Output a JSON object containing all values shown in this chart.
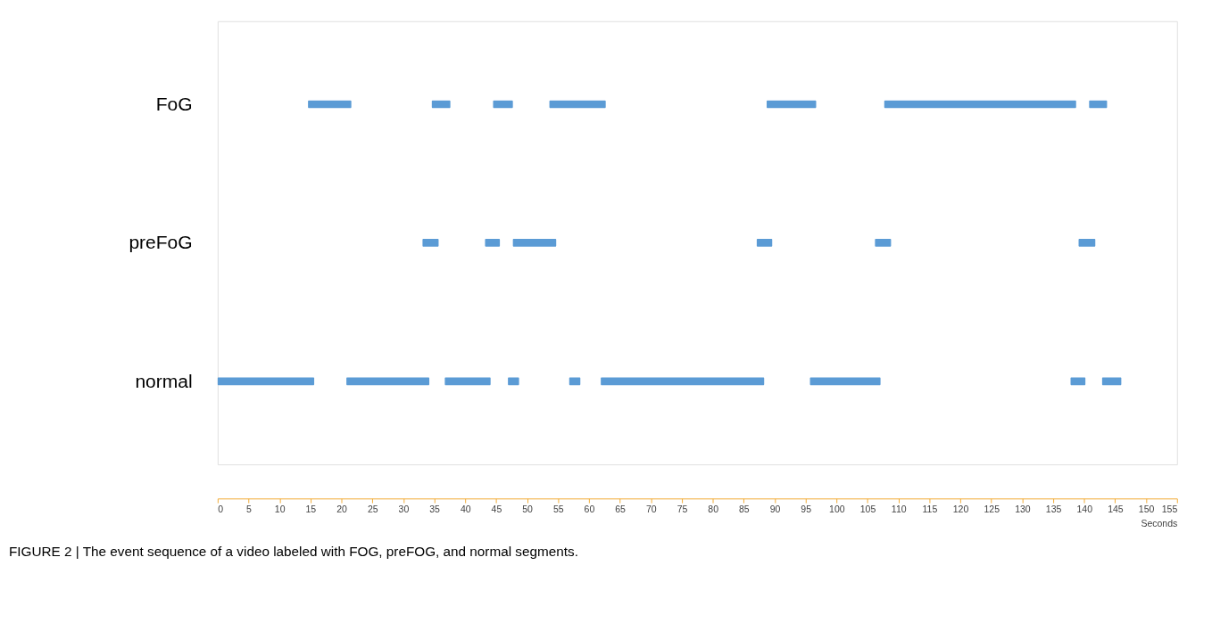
{
  "chart_data": {
    "type": "bar",
    "orientation": "horizontal",
    "categories": [
      "FoG",
      "preFoG",
      "normal"
    ],
    "series": [
      {
        "color": "#5b9bd5",
        "base": [
          14.6,
          33.1,
          0
        ],
        "values": [
          7.0,
          2.6,
          15.6
        ]
      },
      {
        "color": "#5b9bd5",
        "base": [
          34.6,
          43.2,
          20.8
        ],
        "values": [
          3.0,
          2.4,
          13.4
        ]
      },
      {
        "color": "#5b9bd5",
        "base": [
          44.5,
          47.7,
          36.7
        ],
        "values": [
          3.2,
          7.0,
          7.4
        ]
      },
      {
        "color": "#5b9bd5",
        "base": [
          53.6,
          87.1,
          46.9
        ],
        "values": [
          9.1,
          2.5,
          1.8
        ]
      },
      {
        "color": "#5b9bd5",
        "base": [
          88.7,
          106.2,
          56.8
        ],
        "values": [
          8.0,
          2.6,
          1.8
        ]
      },
      {
        "color": "#5b9bd5",
        "base": [
          107.7,
          139.1,
          61.9
        ],
        "values": [
          31.0,
          2.7,
          26.4
        ]
      },
      {
        "color": "#5b9bd5",
        "base": [
          140.8,
          null,
          95.7
        ],
        "values": [
          2.9,
          null,
          11.4
        ]
      },
      {
        "color": "#5b9bd5",
        "base": [
          null,
          null,
          137.8
        ],
        "values": [
          null,
          null,
          2.4
        ]
      },
      {
        "color": "#5b9bd5",
        "base": [
          null,
          null,
          142.9
        ],
        "values": [
          null,
          null,
          3.1
        ]
      }
    ],
    "xlabel": "Seconds",
    "xlim": [
      0,
      155
    ],
    "xticks": [
      0,
      5,
      10,
      15,
      20,
      25,
      30,
      35,
      40,
      45,
      50,
      55,
      60,
      65,
      70,
      75,
      80,
      85,
      90,
      95,
      100,
      105,
      110,
      115,
      120,
      125,
      130,
      135,
      140,
      145,
      150,
      155
    ],
    "grid": false,
    "legend": false,
    "annotations": [
      "FIGURE 2 | The event sequence of a video labeled with FOG, preFOG, and normal segments."
    ]
  }
}
